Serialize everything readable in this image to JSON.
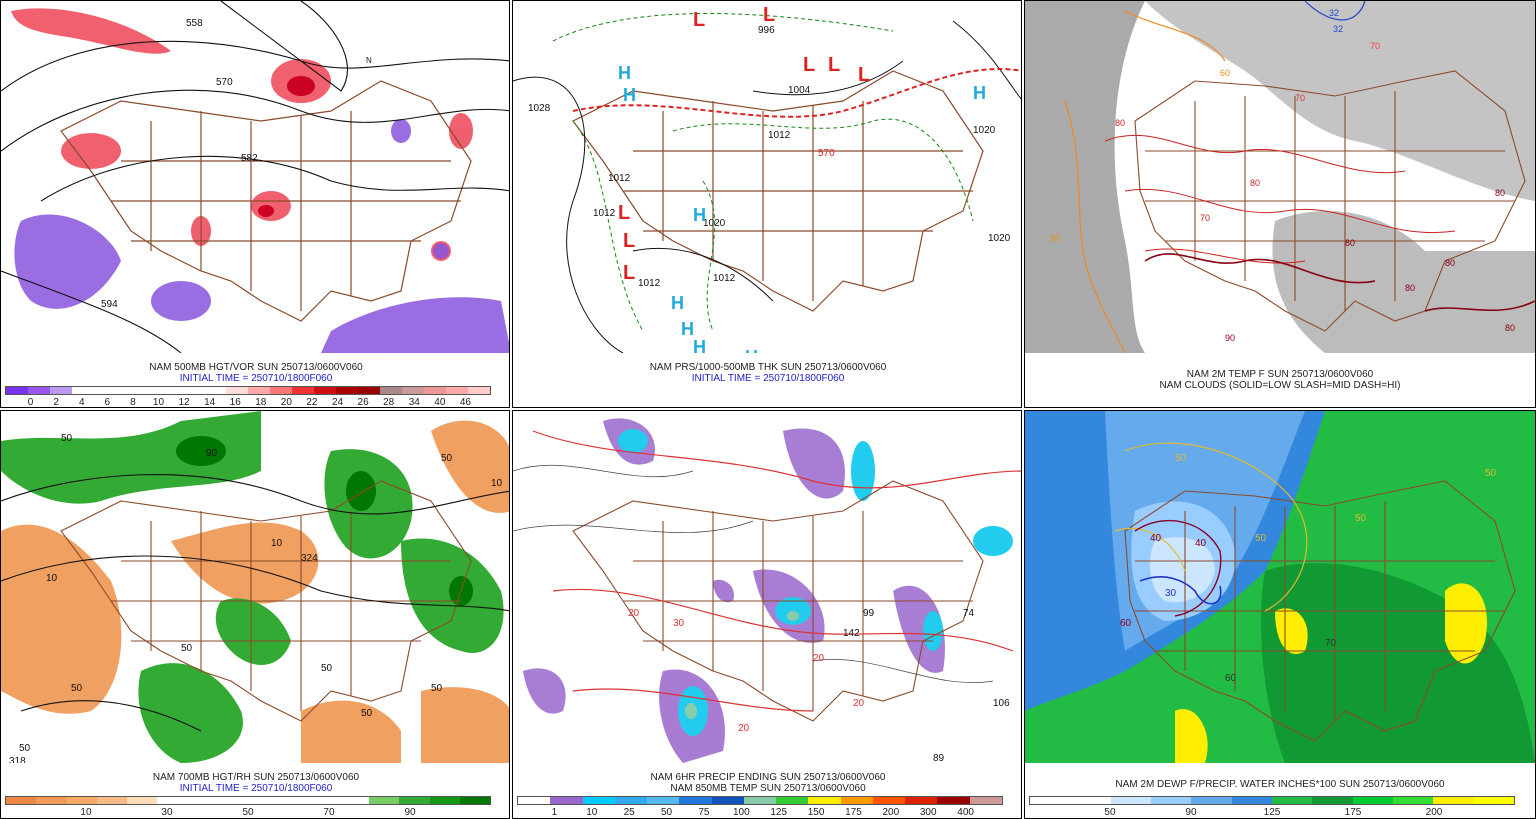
{
  "panels": [
    {
      "id": "p1",
      "title": "NAM 500MB HGT/VOR SUN 250713/0600V060",
      "subtitle": "INITIAL TIME = 250710/1800F060",
      "colorbar": [
        "#7733ee",
        "#9955ee",
        "#bb99ee",
        "#ffffff",
        "#ffffff",
        "#ffffff",
        "#ffffff",
        "#ffffff",
        "#ffffff",
        "#ffffff",
        "#ffdddd",
        "#ffaaaa",
        "#ff7777",
        "#ee3333",
        "#cc1111",
        "#aa0000",
        "#990000",
        "#aa8888",
        "#cc9999",
        "#ee9999",
        "#ffaaaa",
        "#ffcccc"
      ],
      "ticks": [
        "0",
        "2",
        "4",
        "6",
        "8",
        "10",
        "12",
        "14",
        "16",
        "18",
        "20",
        "22",
        "24",
        "26",
        "28",
        "34",
        "40",
        "46"
      ],
      "contour_labels": [
        "558",
        "570",
        "582",
        "594",
        "N"
      ]
    },
    {
      "id": "p2",
      "title": "NAM PRS/1000-500MB THK SUN 250713/0600V060",
      "subtitle": "INITIAL TIME = 250710/1800F060",
      "contour_labels": [
        "996",
        "1004",
        "1012",
        "1020",
        "1028",
        "570",
        "1012",
        "1020",
        "1012",
        "1012",
        "1012",
        "1020"
      ],
      "high_letter": "H",
      "low_letter": "L"
    },
    {
      "id": "p3",
      "title": "NAM 2M TEMP F SUN 250713/0600V060",
      "subtitle": "NAM CLOUDS (SOLID=LOW SLASH=MID DASH=HI)",
      "contour_labels": [
        "32",
        "32",
        "70",
        "70",
        "60",
        "60",
        "80",
        "80",
        "80",
        "70",
        "80",
        "80",
        "90",
        "80",
        "80"
      ]
    },
    {
      "id": "p4",
      "title": "NAM 700MB HGT/RH SUN 250713/0600V060",
      "subtitle": "INITIAL TIME = 250710/1800F060",
      "colorbar": [
        "#ee8844",
        "#f29955",
        "#f5aa66",
        "#f8bb88",
        "#fbddbb",
        "#ffffff",
        "#ffffff",
        "#ffffff",
        "#ffffff",
        "#ffffff",
        "#ffffff",
        "#ffffff",
        "#77cc66",
        "#33aa33",
        "#119911",
        "#007700"
      ],
      "ticks": [
        "10",
        "30",
        "50",
        "70",
        "90"
      ],
      "contour_labels": [
        "50",
        "10",
        "318",
        "50",
        "10",
        "50",
        "50",
        "50",
        "50",
        "324",
        "50",
        "50",
        "90",
        "10"
      ]
    },
    {
      "id": "p5",
      "title": "NAM 6HR PRECIP ENDING SUN 250713/0600V060",
      "subtitle": "NAM 850MB TEMP SUN 250713/0600V060",
      "colorbar": [
        "#ffffff",
        "#9966cc",
        "#00ccff",
        "#33aaee",
        "#55bbee",
        "#2277dd",
        "#1155bb",
        "#88ccaa",
        "#33cc33",
        "#ffee00",
        "#ff9900",
        "#ff5500",
        "#dd2200",
        "#990000",
        "#cc9999"
      ],
      "ticks": [
        "1",
        "10",
        "25",
        "50",
        "75",
        "100",
        "125",
        "150",
        "175",
        "200",
        "300",
        "400"
      ],
      "contour_labels": [
        "20",
        "20",
        "20",
        "20",
        "30",
        "74",
        "89",
        "106",
        "142",
        "99"
      ]
    },
    {
      "id": "p6",
      "title": "NAM 2M DEWP F/PRECIP. WATER INCHES*100 SUN 250713/0600V060",
      "colorbar": [
        "#ffffff",
        "#ffffff",
        "#cce6ff",
        "#99ccff",
        "#66aaee",
        "#3388dd",
        "#22bb44",
        "#119933",
        "#00cc33",
        "#33dd33",
        "#ffee00",
        "#ffff00"
      ],
      "ticks": [
        "50",
        "90",
        "125",
        "175",
        "200"
      ],
      "contour_labels": [
        "50",
        "50",
        "40",
        "50",
        "50",
        "30",
        "60",
        "40",
        "70",
        "60"
      ]
    }
  ]
}
